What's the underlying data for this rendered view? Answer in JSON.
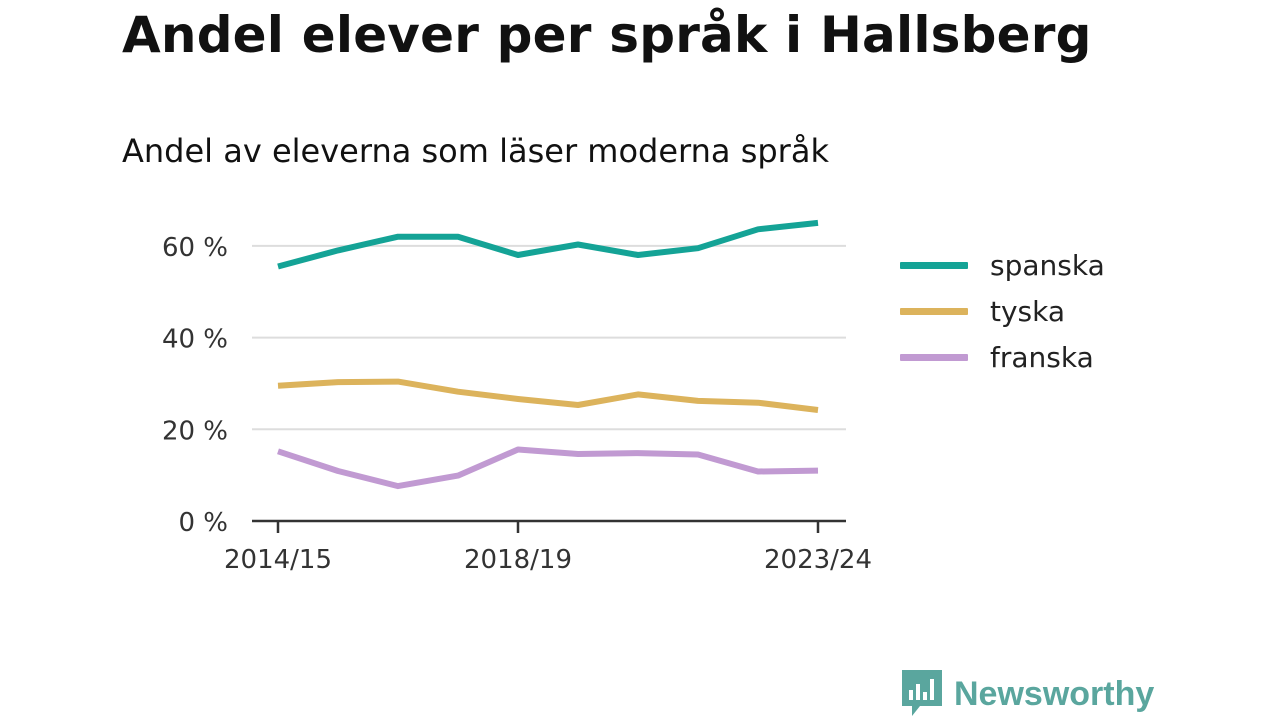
{
  "title": "Andel elever per språk i Hallsberg",
  "subtitle": "Andel av eleverna som läser moderna språk",
  "brand": {
    "name": "Newsworthy",
    "color": "#5aa69e"
  },
  "chart_data": {
    "type": "line",
    "xlabel": "",
    "ylabel": "",
    "ylim": [
      0,
      70
    ],
    "y_ticks": [
      0,
      20,
      40,
      60
    ],
    "y_tick_labels": [
      "0 %",
      "20 %",
      "40 %",
      "60 %"
    ],
    "x": [
      "2014/15",
      "2015/16",
      "2016/17",
      "2017/18",
      "2018/19",
      "2019/20",
      "2020/21",
      "2021/22",
      "2022/23",
      "2023/24"
    ],
    "x_tick_labels": [
      "2014/15",
      "2018/19",
      "2023/24"
    ],
    "grid": "horizontal",
    "legend_position": "right",
    "series": [
      {
        "name": "spanska",
        "color": "#14a396",
        "values": [
          55.5,
          59,
          62,
          62,
          58,
          60.3,
          58,
          59.5,
          63.6,
          65
        ]
      },
      {
        "name": "tyska",
        "color": "#dcb35c",
        "values": [
          29.5,
          30.3,
          30.4,
          28.2,
          26.6,
          25.3,
          27.6,
          26.2,
          25.8,
          24.2
        ]
      },
      {
        "name": "franska",
        "color": "#c19ad2",
        "values": [
          15.2,
          10.9,
          7.6,
          9.9,
          15.6,
          14.6,
          14.8,
          14.5,
          10.8,
          11
        ]
      }
    ]
  }
}
